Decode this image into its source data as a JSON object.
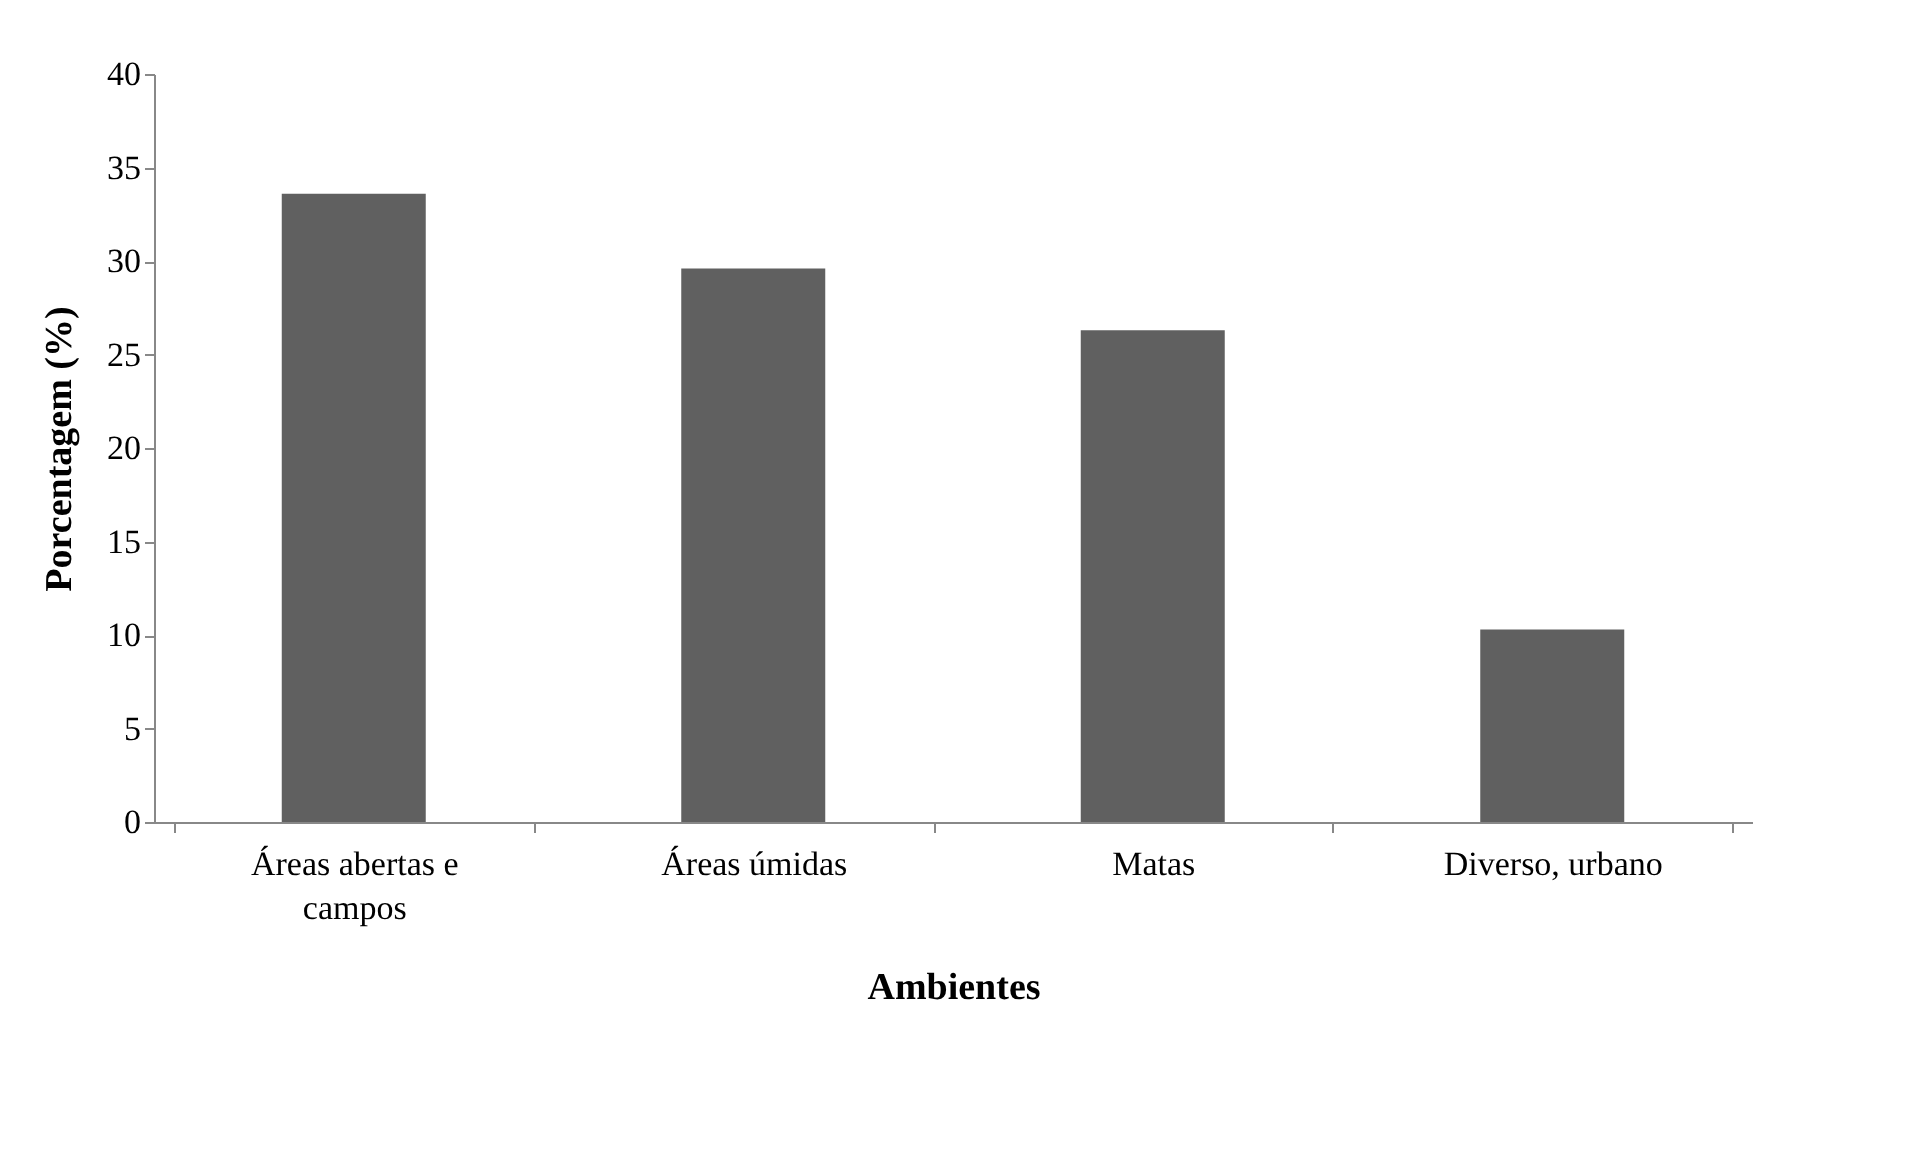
{
  "chart_data": {
    "type": "bar",
    "xlabel": "Ambientes",
    "ylabel": "Porcentagem (%)",
    "categories": [
      "Áreas abertas e campos",
      "Áreas úmidas",
      "Matas",
      "Diverso, urbano"
    ],
    "values": [
      33.6,
      29.6,
      26.3,
      10.3
    ],
    "color": "#606060",
    "ylim": [
      0,
      40
    ],
    "yticks": [
      0,
      5,
      10,
      15,
      20,
      25,
      30,
      35,
      40
    ],
    "grid": false
  }
}
